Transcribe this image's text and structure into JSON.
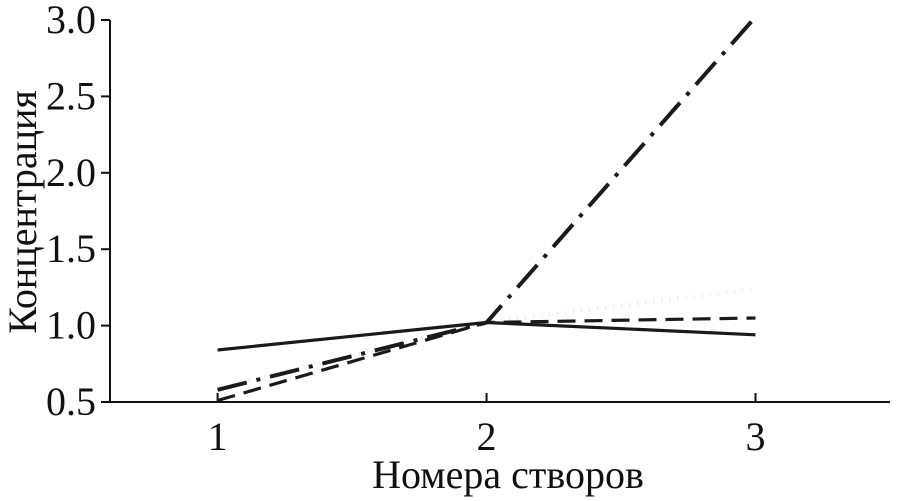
{
  "chart_data": {
    "type": "line",
    "title": "",
    "xlabel": "Номера створов",
    "ylabel": "Концентрация",
    "x": [
      1,
      2,
      3
    ],
    "x_tick_labels": [
      "1",
      "2",
      "3"
    ],
    "y_tick_labels": [
      "0.5",
      "1.0",
      "1.5",
      "2.0",
      "2.5",
      "3.0"
    ],
    "y_ticks": [
      0.5,
      1.0,
      1.5,
      2.0,
      2.5,
      3.0
    ],
    "xlim": [
      0.6,
      3.5
    ],
    "ylim": [
      0.5,
      3.0
    ],
    "grid": false,
    "series": [
      {
        "values": [
          0.84,
          1.02,
          0.94
        ],
        "style": "solid",
        "color": "#1a1a1a"
      },
      {
        "values": [
          0.51,
          1.02,
          1.05
        ],
        "style": "dashed",
        "color": "#1a1a1a"
      },
      {
        "values": [
          0.59,
          1.02,
          1.24
        ],
        "style": "dotted",
        "color": "#1a1a1a"
      },
      {
        "values": [
          0.58,
          1.02,
          3.02
        ],
        "style": "dash-dot",
        "color": "#1a1a1a"
      }
    ]
  }
}
